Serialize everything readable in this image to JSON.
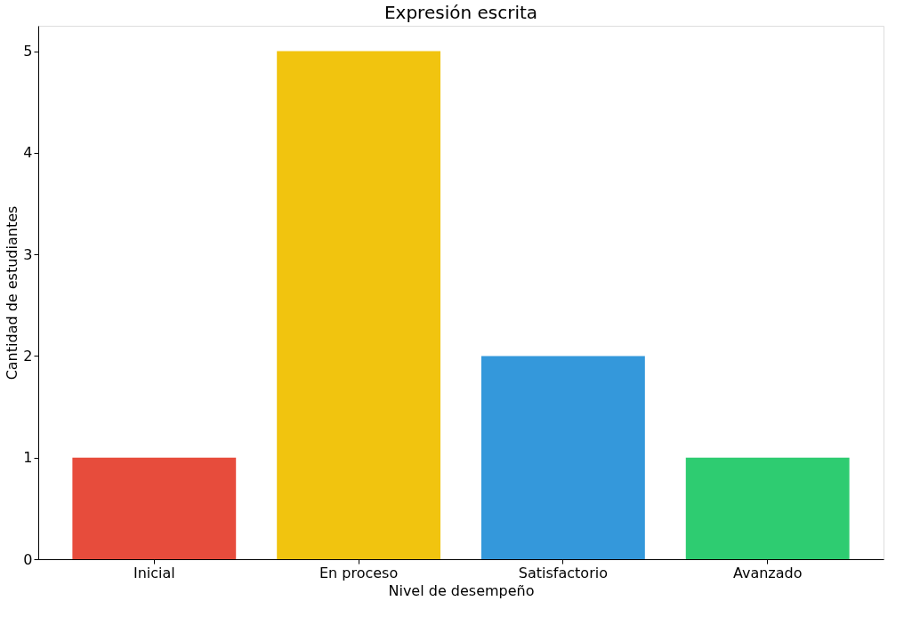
{
  "chart_data": {
    "type": "bar",
    "title": "Expresión escrita",
    "xlabel": "Nivel de desempeño",
    "ylabel": "Cantidad de estudiantes",
    "categories": [
      "Inicial",
      "En proceso",
      "Satisfactorio",
      "Avanzado"
    ],
    "values": [
      1,
      5,
      2,
      1
    ],
    "colors": [
      "#e74c3c",
      "#f1c40f",
      "#3498db",
      "#2ecc71"
    ],
    "ylim": [
      0,
      5.25
    ],
    "yticks": [
      0,
      1,
      2,
      3,
      4,
      5
    ],
    "grid": false
  }
}
